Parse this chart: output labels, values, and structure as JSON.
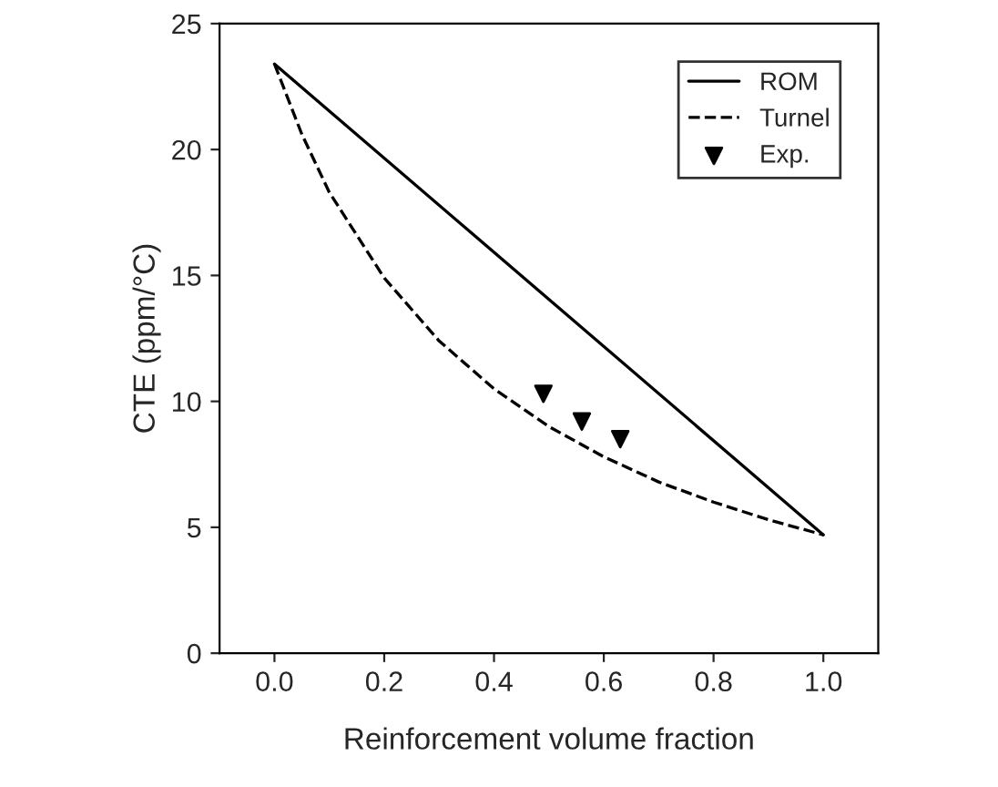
{
  "chart_data": {
    "type": "line",
    "xlabel": "Reinforcement volume fraction",
    "ylabel": "CTE (ppm/°C)",
    "xlim": [
      -0.1,
      1.1
    ],
    "xticks": [
      {
        "value": 0.0,
        "label": "0.0"
      },
      0.2,
      0.4,
      0.6,
      0.8,
      {
        "value": 1.0,
        "label": "1.0"
      }
    ],
    "ylim": [
      0,
      25
    ],
    "yticks": [
      0,
      5,
      10,
      15,
      20,
      25
    ],
    "grid": false,
    "legend": "top right",
    "series": [
      {
        "name": "ROM",
        "color": "#000000",
        "line_style": "solid",
        "marker": "none",
        "x": [
          0.0,
          1.0
        ],
        "values": [
          23.4,
          4.7
        ]
      },
      {
        "name": "Turnel",
        "color": "#000000",
        "line_style": "dashed",
        "marker": "none",
        "x": [
          0.0,
          0.05,
          0.1,
          0.2,
          0.3,
          0.4,
          0.5,
          0.6,
          0.7,
          0.8,
          0.9,
          1.0
        ],
        "values": [
          23.4,
          20.6,
          18.3,
          14.9,
          12.4,
          10.5,
          9.0,
          7.8,
          6.8,
          6.0,
          5.3,
          4.7
        ]
      },
      {
        "name": "Exp.",
        "type": "scatter",
        "color": "#000000",
        "marker": "triangle",
        "x": [
          0.49,
          0.56,
          0.63
        ],
        "values": [
          10.3,
          9.2,
          8.5
        ]
      }
    ]
  }
}
